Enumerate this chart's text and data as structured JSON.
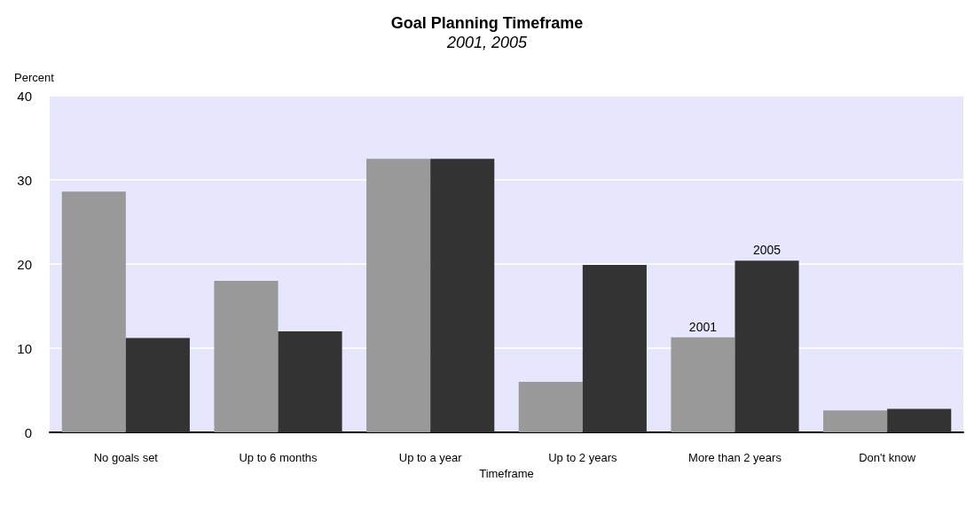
{
  "chart_data": {
    "type": "bar",
    "title": "Goal Planning Timeframe",
    "subtitle": "2001, 2005",
    "xlabel": "Timeframe",
    "ylabel": "Percent",
    "categories": [
      "No goals set",
      "Up to 6 months",
      "Up to a year",
      "Up to 2 years",
      "More than 2 years",
      "Don't know"
    ],
    "series": [
      {
        "name": "2001",
        "color": "#999999",
        "values": [
          28.6,
          18.0,
          32.5,
          6.0,
          11.3,
          2.6
        ]
      },
      {
        "name": "2005",
        "color": "#333333",
        "values": [
          11.2,
          12.0,
          32.5,
          19.9,
          20.4,
          2.8
        ]
      }
    ],
    "ylim": [
      0,
      40
    ],
    "yticks": [
      0,
      10,
      20,
      30,
      40
    ],
    "grid": "y",
    "legend": false
  }
}
